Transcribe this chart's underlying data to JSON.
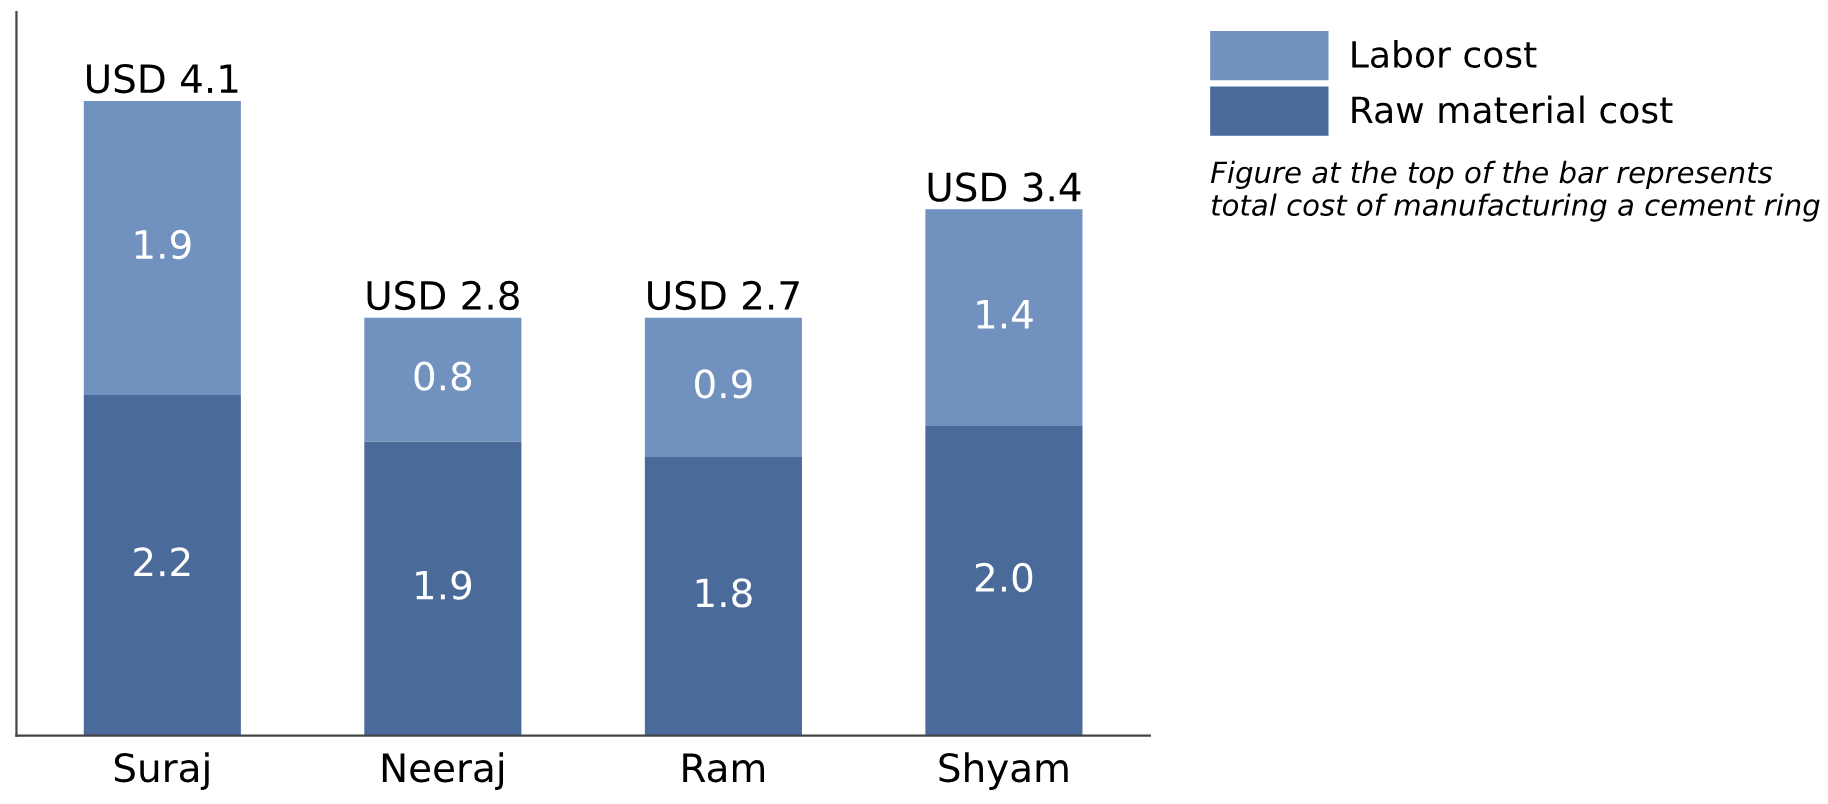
{
  "chart_data": {
    "type": "bar",
    "stacked": true,
    "legend": "top right",
    "categories": [
      "Suraj",
      "Neeraj",
      "Ram",
      "Shyam"
    ],
    "series": [
      {
        "name": "Raw material cost",
        "color": "#4a6a9a",
        "values": [
          2.2,
          1.9,
          1.8,
          2.0
        ],
        "value_labels": [
          "2.2",
          "1.9",
          "1.8",
          "2.0"
        ]
      },
      {
        "name": "Labor cost",
        "color": "#7191be",
        "values": [
          1.9,
          0.8,
          0.9,
          1.4
        ],
        "value_labels": [
          "1.9",
          "0.8",
          "0.9",
          "1.4"
        ]
      }
    ],
    "totals": [
      "USD 4.1",
      "USD 2.8",
      "USD 2.7",
      "USD 3.4"
    ],
    "annotations": [
      "Figure at the top of the bar represents total cost of manufacturing a cement ring"
    ]
  }
}
